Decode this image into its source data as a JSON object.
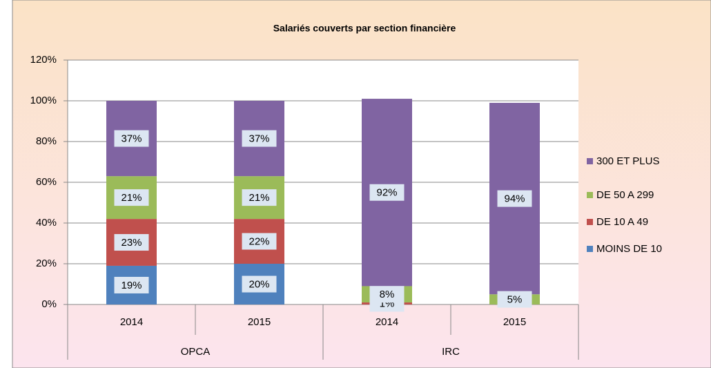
{
  "chart_data": {
    "type": "stacked_bar",
    "title": "Salariés couverts par section financière",
    "categories": [
      "2014",
      "2015",
      "2014",
      "2015"
    ],
    "groups": [
      "OPCA",
      "IRC"
    ],
    "series": [
      {
        "name": "MOINS DE 10",
        "color": "#4f81bd",
        "values": [
          19,
          20,
          0,
          0
        ],
        "value_labels": [
          "19%",
          "20%",
          null,
          null
        ]
      },
      {
        "name": "DE 10 A 49",
        "color": "#c0504d",
        "values": [
          23,
          22,
          1,
          0
        ],
        "value_labels": [
          "23%",
          "22%",
          "1%",
          null
        ]
      },
      {
        "name": "DE 50 A 299",
        "color": "#9bbb59",
        "values": [
          21,
          21,
          8,
          5
        ],
        "value_labels": [
          "21%",
          "21%",
          "8%",
          "5%"
        ]
      },
      {
        "name": "300 ET PLUS",
        "color": "#8064a2",
        "values": [
          37,
          37,
          92,
          94
        ],
        "value_labels": [
          "37%",
          "37%",
          "92%",
          "94%"
        ]
      }
    ],
    "ylim": [
      0,
      120
    ],
    "yticks": [
      {
        "value": 0,
        "label": "0%"
      },
      {
        "value": 20,
        "label": "20%"
      },
      {
        "value": 40,
        "label": "40%"
      },
      {
        "value": 60,
        "label": "60%"
      },
      {
        "value": 80,
        "label": "80%"
      },
      {
        "value": 100,
        "label": "100%"
      },
      {
        "value": 120,
        "label": "120%"
      }
    ],
    "grid": true,
    "legend": "right"
  }
}
